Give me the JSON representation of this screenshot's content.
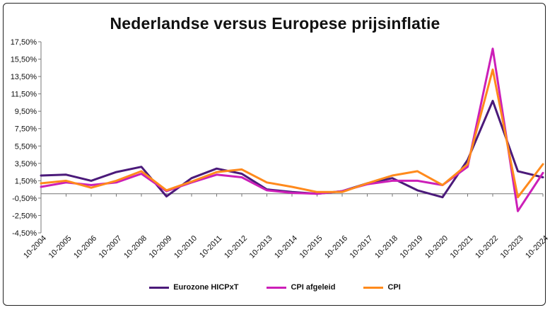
{
  "chart_data": {
    "type": "line",
    "title": "Nederlandse versus Europese prijsinflatie",
    "xlabel": "",
    "ylabel": "",
    "categories": [
      "10-2004",
      "10-2005",
      "10-2006",
      "10-2007",
      "10-2008",
      "10-2009",
      "10-2010",
      "10-2011",
      "10-2012",
      "10-2013",
      "10-2014",
      "10-2015",
      "10-2016",
      "10-2017",
      "10-2018",
      "10-2019",
      "10-2020",
      "10-2021",
      "10-2022",
      "10-2023",
      "10-2024"
    ],
    "y_ticks": [
      "17,50%",
      "15,50%",
      "13,50%",
      "11,50%",
      "9,50%",
      "7,50%",
      "5,50%",
      "3,50%",
      "1,50%",
      "-0,50%",
      "-2,50%",
      "-4,50%"
    ],
    "y_tick_values": [
      17.5,
      15.5,
      13.5,
      11.5,
      9.5,
      7.5,
      5.5,
      3.5,
      1.5,
      -0.5,
      -2.5,
      -4.5
    ],
    "ylim": [
      -4.5,
      17.5
    ],
    "series": [
      {
        "name": "Eurozone HICPxT",
        "color": "#4b1a7a",
        "values": [
          2.1,
          2.2,
          1.5,
          2.5,
          3.1,
          -0.3,
          1.8,
          2.9,
          2.3,
          0.5,
          0.2,
          0.0,
          0.3,
          1.2,
          1.8,
          0.4,
          -0.4,
          3.9,
          10.7,
          2.6,
          1.9
        ]
      },
      {
        "name": "CPI afgeleid",
        "color": "#cc1fb8",
        "values": [
          0.8,
          1.3,
          1.0,
          1.3,
          2.3,
          0.3,
          1.3,
          2.2,
          1.9,
          0.4,
          0.1,
          0.0,
          0.3,
          1.1,
          1.5,
          1.5,
          1.0,
          3.1,
          16.7,
          -2.0,
          2.4
        ]
      },
      {
        "name": "CPI",
        "color": "#ff8a1c",
        "values": [
          1.2,
          1.5,
          0.7,
          1.5,
          2.6,
          0.4,
          1.4,
          2.5,
          2.8,
          1.3,
          0.8,
          0.2,
          0.2,
          1.2,
          2.1,
          2.6,
          1.0,
          3.4,
          14.3,
          -0.4,
          3.4
        ]
      }
    ],
    "grid": false,
    "legend_position": "bottom"
  }
}
